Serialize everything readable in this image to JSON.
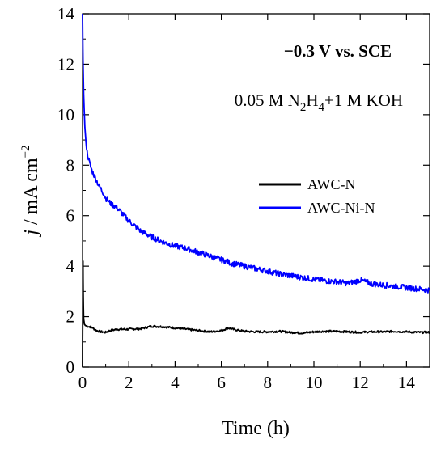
{
  "chart_data": {
    "type": "line",
    "xlabel": "Time (h)",
    "ylabel": {
      "var": "j",
      "unit": " / mA cm",
      "exp": "−2"
    },
    "xlim": [
      0,
      15
    ],
    "ylim": [
      0,
      14
    ],
    "xticks": [
      0,
      2,
      4,
      6,
      8,
      10,
      12,
      14
    ],
    "yticks": [
      0,
      2,
      4,
      6,
      8,
      10,
      12,
      14
    ],
    "annotations": {
      "potential": "−0.3 V vs. SCE",
      "electrolyte": {
        "a": "0.05 M N",
        "sub1": "2",
        "b": "H",
        "sub2": "4",
        "c": "+1 M KOH"
      }
    },
    "legend_position": "right-middle",
    "series": [
      {
        "name": "AWC-N",
        "color": "#000000",
        "x": [
          0,
          0.01,
          0.02,
          0.03,
          0.05,
          0.08,
          0.12,
          0.2,
          0.4,
          0.6,
          0.8,
          1.0,
          1.2,
          1.5,
          2.0,
          2.5,
          3.0,
          3.5,
          4.0,
          4.5,
          5.0,
          5.5,
          6.0,
          6.3,
          6.5,
          6.8,
          7.0,
          7.5,
          8.0,
          8.5,
          9.0,
          9.5,
          10.0,
          10.5,
          11.0,
          11.5,
          12.0,
          12.5,
          13.0,
          13.5,
          14.0,
          14.5,
          15.0
        ],
        "y": [
          0,
          2.0,
          4.2,
          2.8,
          1.9,
          1.7,
          1.65,
          1.62,
          1.58,
          1.45,
          1.4,
          1.38,
          1.45,
          1.5,
          1.5,
          1.52,
          1.62,
          1.6,
          1.55,
          1.5,
          1.45,
          1.4,
          1.45,
          1.55,
          1.5,
          1.45,
          1.42,
          1.4,
          1.4,
          1.42,
          1.38,
          1.35,
          1.4,
          1.42,
          1.42,
          1.4,
          1.38,
          1.4,
          1.4,
          1.42,
          1.4,
          1.38,
          1.38
        ]
      },
      {
        "name": "AWC-Ni-N",
        "color": "#0000ff",
        "x": [
          0,
          0.02,
          0.05,
          0.1,
          0.15,
          0.2,
          0.3,
          0.4,
          0.5,
          0.7,
          0.9,
          1.0,
          1.2,
          1.5,
          1.8,
          2.0,
          2.5,
          3.0,
          3.5,
          4.0,
          4.5,
          5.0,
          5.5,
          6.0,
          6.5,
          7.0,
          7.5,
          8.0,
          8.5,
          9.0,
          9.5,
          10.0,
          10.5,
          11.0,
          11.5,
          12.0,
          12.5,
          13.0,
          13.5,
          14.0,
          14.5,
          15.0
        ],
        "y": [
          14.0,
          12.2,
          10.8,
          9.5,
          8.9,
          8.5,
          8.1,
          7.8,
          7.6,
          7.2,
          6.9,
          6.7,
          6.5,
          6.3,
          6.0,
          5.8,
          5.4,
          5.15,
          4.95,
          4.8,
          4.7,
          4.55,
          4.4,
          4.25,
          4.1,
          4.0,
          3.9,
          3.8,
          3.7,
          3.62,
          3.55,
          3.48,
          3.42,
          3.38,
          3.32,
          3.45,
          3.3,
          3.25,
          3.2,
          3.15,
          3.1,
          3.05
        ]
      }
    ]
  }
}
